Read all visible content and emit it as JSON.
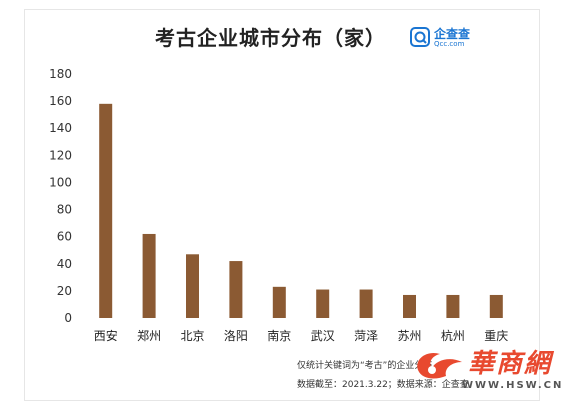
{
  "brand": {
    "name": "企查查",
    "domain": "Qcc.com",
    "icon": "qcc-logo-icon",
    "color": "#1a75d2"
  },
  "notes": {
    "line1": "仅统计关键词为“考古”的企业分布",
    "line2": "数据截至：2021.3.22；数据来源：企查查"
  },
  "watermark": {
    "text": "華商網",
    "url": "WWW.HSW.CN",
    "color": "#e8492f"
  },
  "chart_data": {
    "type": "bar",
    "title": "考古企业城市分布（家）",
    "categories": [
      "西安",
      "郑州",
      "北京",
      "洛阳",
      "南京",
      "武汉",
      "菏泽",
      "苏州",
      "杭州",
      "重庆"
    ],
    "values": [
      158,
      62,
      47,
      42,
      23,
      21,
      21,
      17,
      17,
      17
    ],
    "ylim": [
      0,
      180
    ],
    "yticks": [
      0,
      20,
      40,
      60,
      80,
      100,
      120,
      140,
      160,
      180
    ],
    "grid": false,
    "legend": "none",
    "bar_color": "#8b5a33",
    "xlabel": "",
    "ylabel": ""
  }
}
